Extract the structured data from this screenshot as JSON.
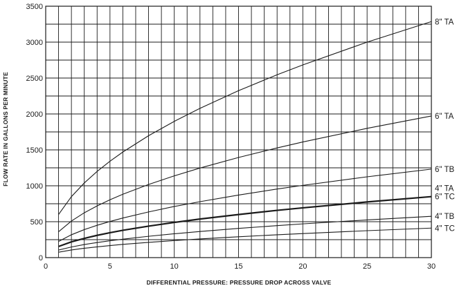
{
  "chart_data": {
    "type": "line",
    "xlabel": "DIFFERENTIAL PRESSURE: PRESSURE DROP ACROSS VALVE",
    "ylabel": "FLOW RATE IN GALLONS PER MINUTE",
    "xlim": [
      0,
      30
    ],
    "ylim": [
      0,
      3500
    ],
    "x_ticks": [
      0,
      5,
      10,
      15,
      20,
      25,
      30
    ],
    "y_ticks": [
      0,
      500,
      1000,
      1500,
      2000,
      2500,
      3000,
      3500
    ],
    "x_minor_step": 1,
    "y_minor_step": 250,
    "grid": true,
    "x": [
      1,
      2,
      3,
      4,
      5,
      6,
      8,
      10,
      12,
      15,
      18,
      20,
      25,
      30
    ],
    "series": [
      {
        "name": "8\" TA",
        "values": [
          600,
          849,
          1039,
          1200,
          1342,
          1470,
          1697,
          1897,
          2078,
          2324,
          2546,
          2683,
          3000,
          3286
        ],
        "bold": false
      },
      {
        "name": "6\" TA",
        "values": [
          360,
          509,
          624,
          720,
          805,
          882,
          1018,
          1138,
          1247,
          1394,
          1527,
          1610,
          1800,
          1972
        ],
        "bold": false
      },
      {
        "name": "6\" TB",
        "values": [
          225,
          318,
          390,
          450,
          503,
          551,
          636,
          712,
          779,
          871,
          955,
          1006,
          1125,
          1232
        ],
        "bold": false
      },
      {
        "name": "4\" TA",
        "values": [
          155,
          219,
          268,
          310,
          347,
          380,
          438,
          490,
          537,
          600,
          658,
          693,
          775,
          849
        ],
        "bold": true
      },
      {
        "name": "6\" TC",
        "values": [
          155,
          219,
          268,
          310,
          347,
          380,
          438,
          490,
          537,
          600,
          658,
          693,
          775,
          849
        ],
        "bold": false
      },
      {
        "name": "4\" TB",
        "values": [
          105,
          148,
          182,
          210,
          235,
          257,
          297,
          332,
          364,
          407,
          445,
          470,
          525,
          575
        ],
        "bold": false
      },
      {
        "name": "4\" TC",
        "values": [
          75,
          106,
          130,
          150,
          168,
          184,
          212,
          237,
          260,
          290,
          318,
          335,
          375,
          411
        ],
        "bold": false
      }
    ]
  }
}
